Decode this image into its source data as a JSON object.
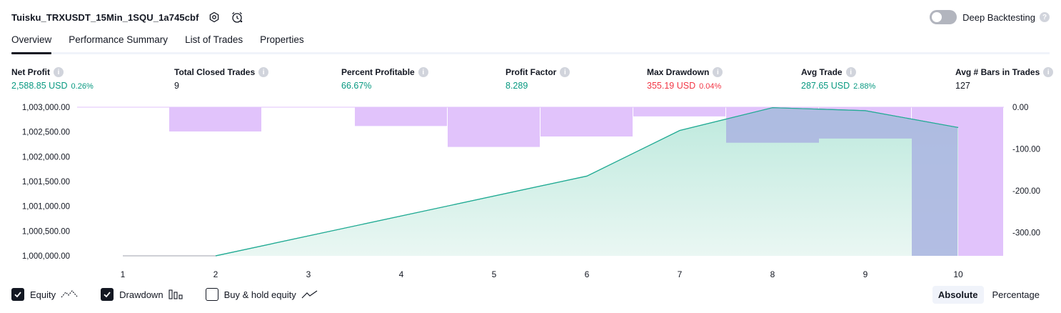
{
  "header": {
    "title": "Tuisku_TRXUSDT_15Min_1SQU_1a745cbf",
    "deep_backtesting_label": "Deep Backtesting",
    "deep_backtesting_enabled": false
  },
  "tabs": [
    {
      "label": "Overview",
      "active": true
    },
    {
      "label": "Performance Summary",
      "active": false
    },
    {
      "label": "List of Trades",
      "active": false
    },
    {
      "label": "Properties",
      "active": false
    }
  ],
  "metrics": {
    "net_profit": {
      "label": "Net Profit",
      "value": "2,588.85 USD",
      "pct": "0.26%"
    },
    "total_closed_trades": {
      "label": "Total Closed Trades",
      "value": "9"
    },
    "percent_profitable": {
      "label": "Percent Profitable",
      "value": "66.67%"
    },
    "profit_factor": {
      "label": "Profit Factor",
      "value": "8.289"
    },
    "max_drawdown": {
      "label": "Max Drawdown",
      "value": "355.19 USD",
      "pct": "0.04%"
    },
    "avg_trade": {
      "label": "Avg Trade",
      "value": "287.65 USD",
      "pct": "2.88%"
    },
    "avg_bars": {
      "label": "Avg # Bars in Trades",
      "value": "127"
    }
  },
  "chart_data": {
    "type": "area",
    "x": [
      1,
      2,
      3,
      4,
      5,
      6,
      7,
      8,
      9,
      10
    ],
    "x_tick_labels": [
      "1",
      "2",
      "3",
      "4",
      "5",
      "6",
      "7",
      "8",
      "9",
      "10"
    ],
    "left_axis": {
      "ticks": [
        1000000,
        1000500,
        1001000,
        1001500,
        1002000,
        1002500,
        1003000
      ],
      "tick_labels": [
        "1,000,000.00",
        "1,000,500.00",
        "1,001,000.00",
        "1,001,500.00",
        "1,002,000.00",
        "1,002,500.00",
        "1,003,000.00"
      ],
      "ylim": [
        1000000,
        1003000
      ]
    },
    "right_axis": {
      "ticks": [
        0,
        -100,
        -200,
        -300
      ],
      "tick_labels": [
        "0.00",
        "-100.00",
        "-200.00",
        "-300.00"
      ],
      "ylim": [
        -355.19,
        0
      ]
    },
    "series": [
      {
        "name": "Equity",
        "axis": "left",
        "values": [
          1000000,
          1000000,
          null,
          null,
          null,
          1001610,
          1002530,
          1002990,
          1002930,
          1002590
        ]
      },
      {
        "name": "Drawdown",
        "axis": "right",
        "values": [
          0,
          -58,
          0,
          -45,
          -95,
          -70,
          -22,
          -85,
          -75,
          -355.19
        ]
      }
    ],
    "grid": false,
    "colors": {
      "equity_line": "#22ab94",
      "equity_fill_top": "#bde9dd",
      "equity_fill_bottom": "#eaf7f3",
      "drawdown_bar": "#e1c3fb",
      "drawdown_overlap": "#acb7e1"
    }
  },
  "legend": {
    "equity": {
      "label": "Equity",
      "checked": true
    },
    "drawdown": {
      "label": "Drawdown",
      "checked": true
    },
    "buy_hold": {
      "label": "Buy & hold equity",
      "checked": false
    }
  },
  "mode": {
    "absolute_label": "Absolute",
    "percentage_label": "Percentage",
    "selected": "Absolute"
  }
}
